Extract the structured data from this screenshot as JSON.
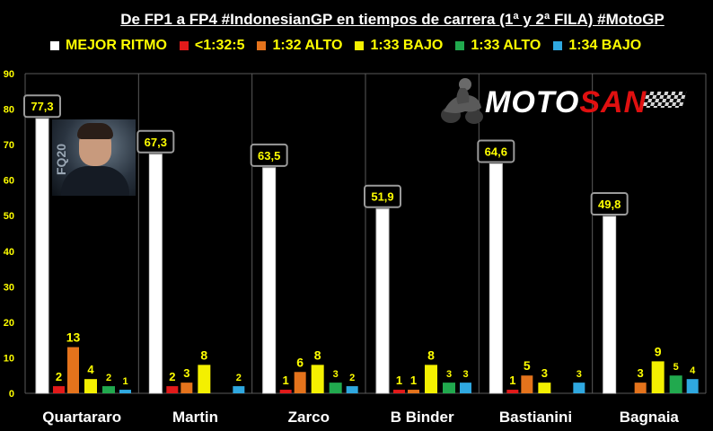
{
  "title": "De FP1 a FP4 #IndonesianGP en tiempos de carrera (1ª y 2ª FILA) #MotoGP",
  "logo": {
    "part1": "MOTO",
    "part2": "SAN"
  },
  "photo_tag": "FQ20",
  "colors": {
    "background": "#000000",
    "grid": "#5a5a5a",
    "label_box_bg": "#000000",
    "label_box_border": "#9a9a9a",
    "label_text": "#ffff00"
  },
  "chart_data": {
    "type": "bar",
    "categories": [
      "Quartararo",
      "Martin",
      "Zarco",
      "B Binder",
      "Bastianini",
      "Bagnaia"
    ],
    "ylim": [
      0,
      90
    ],
    "yticks": [
      0,
      10,
      20,
      30,
      40,
      50,
      60,
      70,
      80,
      90
    ],
    "ytick_labels": [
      "0",
      "10",
      "20",
      "30",
      "40",
      "50",
      "60",
      "70",
      "80",
      "90"
    ],
    "grid": "vertical category separators",
    "legend_position": "top",
    "series": [
      {
        "name": "MEJOR RITMO",
        "color": "#ffffff",
        "values": [
          77.3,
          67.3,
          63.5,
          51.9,
          64.6,
          49.8
        ],
        "labels": [
          "77,3",
          "67,3",
          "63,5",
          "51,9",
          "64,6",
          "49,8"
        ],
        "boxed": true
      },
      {
        "name": "<1:32:5",
        "color": "#e21a1a",
        "values": [
          2,
          2,
          1,
          1,
          1,
          0
        ],
        "labels": [
          "2",
          "2",
          "1",
          "1",
          "1",
          ""
        ]
      },
      {
        "name": "1:32 ALTO",
        "color": "#e4731c",
        "values": [
          13,
          3,
          6,
          1,
          5,
          3
        ],
        "labels": [
          "13",
          "3",
          "6",
          "1",
          "5",
          "3"
        ]
      },
      {
        "name": "1:33 BAJO",
        "color": "#f4f000",
        "values": [
          4,
          8,
          8,
          8,
          3,
          9
        ],
        "labels": [
          "4",
          "8",
          "8",
          "8",
          "3",
          "9"
        ]
      },
      {
        "name": "1:33 ALTO",
        "color": "#21a94e",
        "values": [
          2,
          0,
          3,
          3,
          0,
          5
        ],
        "labels": [
          "2",
          "",
          "3",
          "3",
          "",
          "5"
        ]
      },
      {
        "name": "1:34 BAJO",
        "color": "#2fa8e0",
        "values": [
          1,
          2,
          2,
          3,
          3,
          4
        ],
        "labels": [
          "1",
          "2",
          "2",
          "3",
          "3",
          "4"
        ]
      }
    ]
  }
}
